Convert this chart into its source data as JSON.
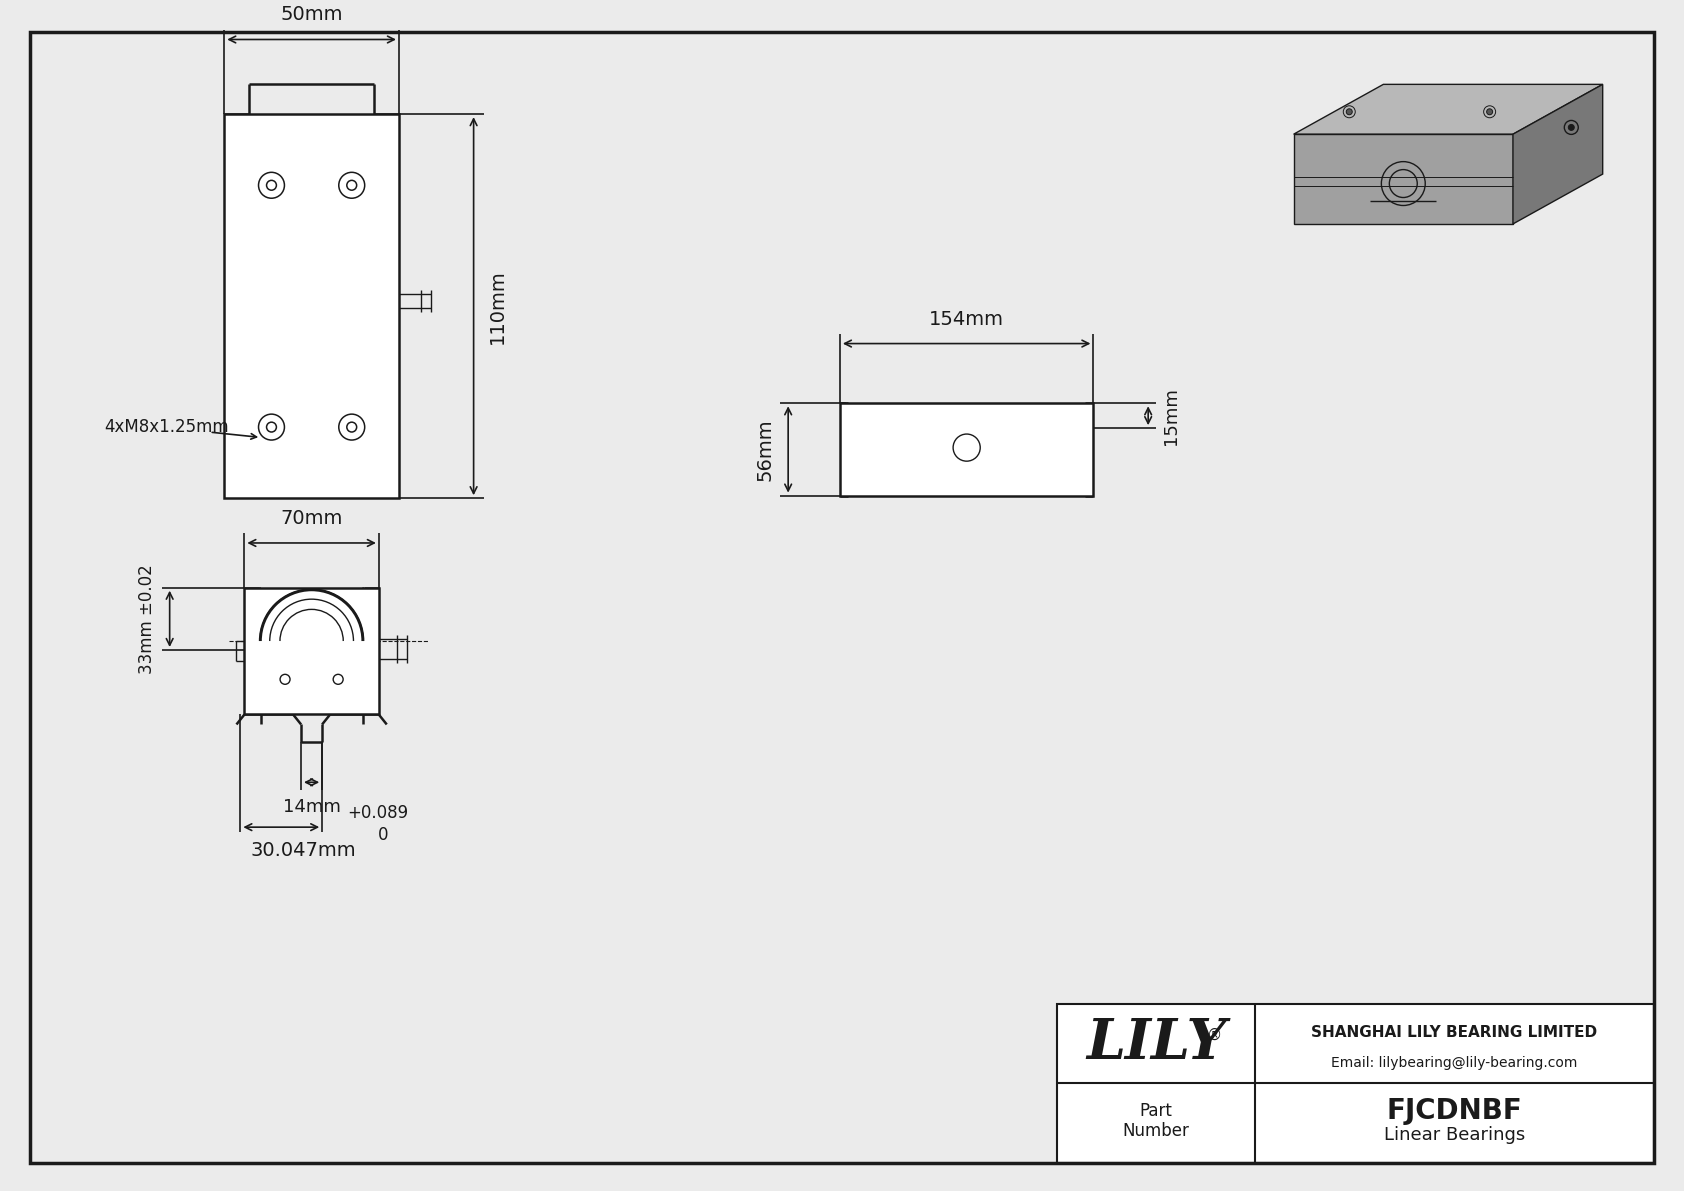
{
  "bg_color": "#ebebeb",
  "line_color": "#1a1a1a",
  "title": "FJCDNBF",
  "subtitle": "Linear Bearings",
  "company": "SHANGHAI LILY BEARING LIMITED",
  "email": "Email: lilybearing@lily-bearing.com",
  "dim_50mm": "50mm",
  "dim_110mm": "110mm",
  "dim_70mm": "70mm",
  "dim_154mm": "154mm",
  "dim_15mm": "15mm",
  "dim_56mm": "56mm",
  "dim_33mm": "33mm ±0.02",
  "dim_14mm": "14mm",
  "dim_30047mm": "30.047mm",
  "dim_m8": "4xM8x1.25mm",
  "tolerance_plus": "+0.089",
  "tolerance_zero": "0"
}
